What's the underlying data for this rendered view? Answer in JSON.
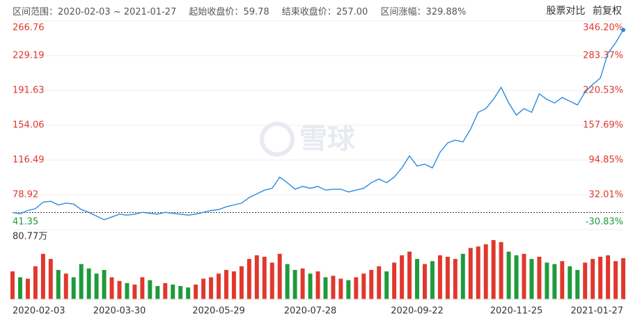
{
  "header": {
    "range_label": "区间范围：",
    "range": "2020-02-03 ~ 2021-01-27",
    "start_label": "起始收盘价：",
    "start_close": 59.78,
    "end_label": "结束收盘价：",
    "end_close": "257.00",
    "change_label": "区间涨幅：",
    "change": "329.88%",
    "compare": "股票对比",
    "adjust": "前复权"
  },
  "watermark": "雪球",
  "chart_data": [
    {
      "type": "line",
      "color": "#2a8ae0",
      "categories": [
        "2020-02-03",
        null,
        null,
        null,
        null,
        null,
        null,
        null,
        null,
        null,
        null,
        null,
        null,
        null,
        "2020-03-30",
        null,
        null,
        null,
        null,
        null,
        null,
        null,
        null,
        null,
        null,
        null,
        null,
        "2020-05-29",
        null,
        null,
        null,
        null,
        null,
        null,
        null,
        null,
        null,
        null,
        null,
        "2020-07-28",
        null,
        null,
        null,
        null,
        null,
        null,
        null,
        null,
        null,
        null,
        null,
        null,
        null,
        "2020-09-22",
        null,
        null,
        null,
        null,
        null,
        null,
        null,
        null,
        null,
        null,
        null,
        null,
        "2020-11-25",
        null,
        null,
        null,
        null,
        null,
        null,
        null,
        null,
        null,
        null,
        null,
        null,
        null,
        "2021-01-27"
      ],
      "values": [
        59.8,
        58.5,
        62,
        64,
        71,
        72,
        68,
        70,
        69,
        63,
        60,
        56,
        52,
        55,
        58,
        57,
        58,
        60,
        59,
        58,
        60,
        59,
        58,
        57,
        58,
        60,
        62,
        63,
        66,
        68,
        70,
        76,
        80,
        84,
        86,
        98,
        92,
        85,
        88,
        86,
        88,
        84,
        85,
        85,
        82,
        84,
        86,
        92,
        96,
        92,
        98,
        108,
        121,
        110,
        112,
        108,
        125,
        135,
        138,
        136,
        150,
        168,
        172,
        182,
        195,
        178,
        165,
        172,
        168,
        188,
        182,
        178,
        184,
        180,
        176,
        190,
        198,
        205,
        232,
        243,
        257
      ],
      "ylim": [
        41.35,
        266.76
      ],
      "yticks": [
        41.35,
        78.92,
        116.49,
        154.06,
        191.63,
        229.19,
        266.76
      ],
      "y2lim": [
        -30.83,
        346.2
      ],
      "y2ticks": [
        {
          "value": -30.83,
          "label": "-30.83%"
        },
        {
          "value": 32.01,
          "label": "32.01%"
        },
        {
          "value": 94.85,
          "label": "94.85%"
        },
        {
          "value": 157.69,
          "label": "157.69%"
        },
        {
          "value": 220.53,
          "label": "220.53%"
        },
        {
          "value": 283.37,
          "label": "283.37%"
        },
        {
          "value": 346.2,
          "label": "346.20%"
        }
      ],
      "grid": true,
      "up_color": "#e0382d",
      "down_color": "#1f9a3c"
    },
    {
      "type": "bar",
      "up_color": "#e0382d",
      "down_color": "#1f9a3c",
      "values": [
        38,
        30,
        28,
        45,
        62,
        55,
        40,
        35,
        30,
        48,
        42,
        35,
        40,
        30,
        25,
        22,
        20,
        30,
        26,
        18,
        22,
        20,
        18,
        16,
        20,
        28,
        30,
        35,
        40,
        38,
        45,
        55,
        60,
        58,
        50,
        62,
        48,
        40,
        42,
        35,
        38,
        30,
        32,
        28,
        26,
        30,
        35,
        40,
        45,
        38,
        50,
        60,
        65,
        55,
        48,
        52,
        60,
        58,
        55,
        62,
        70,
        72,
        75,
        80.77,
        78,
        65,
        60,
        62,
        55,
        58,
        50,
        48,
        52,
        45,
        40,
        50,
        55,
        58,
        60,
        52,
        56
      ],
      "ylim": [
        0,
        80.77
      ],
      "yticks": [
        {
          "value": 80.77,
          "label": "80.77万"
        }
      ]
    }
  ]
}
